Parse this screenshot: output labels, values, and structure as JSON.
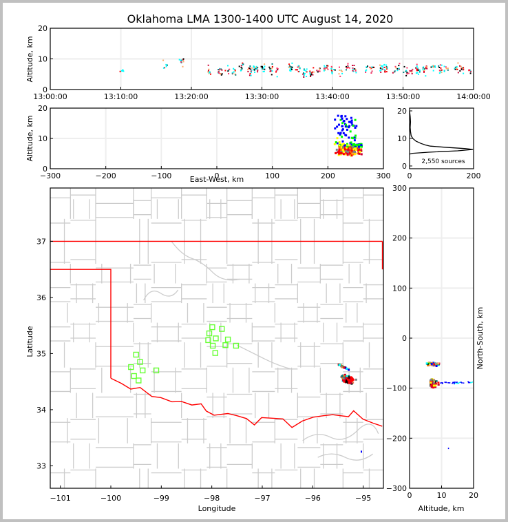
{
  "title": "Oklahoma LMA 1300-1400 UTC August 14, 2020",
  "colors": {
    "state_border": "#ff0000",
    "county_line": "#cccccc",
    "station": "#66ff33",
    "grid": "#eeeeee",
    "histogram": "#000000"
  },
  "chart_data": [
    {
      "id": "time-altitude",
      "type": "scatter",
      "ylabel": "Altitude, km",
      "xlabel": "",
      "xlim": [
        "13:00:00",
        "14:00:00"
      ],
      "ylim": [
        0,
        20
      ],
      "xticks": [
        "13:00:00",
        "13:10:00",
        "13:20:00",
        "13:30:00",
        "13:40:00",
        "13:50:00",
        "14:00:00"
      ],
      "yticks": [
        "0",
        "10",
        "20"
      ],
      "grid": true,
      "series_minutes": [
        10.0,
        16.2,
        18.5,
        22.5,
        24.0,
        25.0,
        26.0,
        27.0,
        28.2,
        29.0,
        30.0,
        31.2,
        32.0,
        34.0,
        35.0,
        36.0,
        37.0,
        38.0,
        39.0,
        40.0,
        41.0,
        42.0,
        43.0,
        44.8,
        45.5,
        46.8,
        47.5,
        48.6,
        49.2,
        50.2,
        51.0,
        52.0,
        53.0,
        54.2,
        55.2,
        56.0,
        57.5,
        58.2,
        59.5
      ],
      "series_alt_km": [
        6.5,
        8.0,
        9.5,
        6.3,
        6.0,
        6.5,
        6.2,
        7.5,
        6.5,
        6.8,
        7.5,
        6.7,
        6.4,
        7.5,
        7.5,
        5.8,
        6.2,
        6.7,
        7.5,
        6.6,
        5.8,
        7.5,
        7.0,
        6.8,
        7.0,
        6.8,
        6.9,
        6.5,
        7.0,
        6.5,
        6.5,
        6.8,
        6.5,
        7.5,
        7.0,
        7.0,
        7.0,
        6.5,
        6.5
      ]
    },
    {
      "id": "east-west-altitude",
      "type": "scatter",
      "xlabel": "East-West, km",
      "ylabel": "Altitude, km",
      "xlim": [
        -300,
        300
      ],
      "ylim": [
        0,
        20
      ],
      "xticks": [
        "−300",
        "−200",
        "−100",
        "0",
        "100",
        "200",
        "300"
      ],
      "yticks": [
        "0",
        "10",
        "20"
      ],
      "grid": true,
      "cluster": {
        "x_range_km": [
          210,
          260
        ],
        "alt_range_km": [
          4.5,
          18
        ],
        "peak_alt_km": 6.5
      }
    },
    {
      "id": "altitude-histogram",
      "type": "line",
      "xlim": [
        0,
        200
      ],
      "ylim": [
        0,
        20
      ],
      "xticks": [
        "0",
        "200"
      ],
      "yticks": [
        "0",
        "10",
        "20"
      ],
      "annotation": "2,550 sources",
      "profile_alt_km": [
        4.3,
        4.6,
        5.0,
        5.5,
        6.0,
        6.3,
        6.8,
        7.2,
        7.6,
        8.2,
        9.0,
        10.0,
        11.0,
        12.5,
        14.0,
        16.0,
        18.0,
        20.0
      ],
      "profile_counts": [
        0,
        10,
        60,
        150,
        198,
        175,
        110,
        65,
        50,
        35,
        20,
        10,
        5,
        3,
        2,
        3,
        2,
        0
      ]
    },
    {
      "id": "plan-view-map",
      "type": "scatter",
      "xlabel": "Longitude",
      "ylabel": "Latitude",
      "xlim": [
        -101.2,
        -94.6
      ],
      "ylim": [
        32.6,
        37.95
      ],
      "xticks": [
        "−101",
        "−100",
        "−99",
        "−98",
        "−97",
        "−96",
        "−95"
      ],
      "yticks": [
        "33",
        "34",
        "35",
        "36",
        "37"
      ],
      "stations": [
        {
          "lon": -99.5,
          "lat": 34.98
        },
        {
          "lon": -99.42,
          "lat": 34.85
        },
        {
          "lon": -99.6,
          "lat": 34.76
        },
        {
          "lon": -99.37,
          "lat": 34.7
        },
        {
          "lon": -99.1,
          "lat": 34.7
        },
        {
          "lon": -99.54,
          "lat": 34.6
        },
        {
          "lon": -99.45,
          "lat": 34.52
        },
        {
          "lon": -97.99,
          "lat": 35.47
        },
        {
          "lon": -97.8,
          "lat": 35.44
        },
        {
          "lon": -98.05,
          "lat": 35.36
        },
        {
          "lon": -97.92,
          "lat": 35.27
        },
        {
          "lon": -97.68,
          "lat": 35.25
        },
        {
          "lon": -98.07,
          "lat": 35.24
        },
        {
          "lon": -97.98,
          "lat": 35.14
        },
        {
          "lon": -97.73,
          "lat": 35.15
        },
        {
          "lon": -97.52,
          "lat": 35.14
        },
        {
          "lon": -97.93,
          "lat": 35.01
        }
      ],
      "lightning_cluster": {
        "lon_range": [
          -95.6,
          -95.05
        ],
        "lat_range": [
          34.4,
          34.87
        ],
        "core_lon": -95.3,
        "core_lat": 34.55
      }
    },
    {
      "id": "altitude-north-south",
      "type": "scatter",
      "xlabel": "Altitude, km",
      "ylabel": "North-South, km",
      "xlim": [
        0,
        20
      ],
      "ylim": [
        -300,
        300
      ],
      "xticks": [
        "0",
        "10",
        "20"
      ],
      "yticks": [
        "−300",
        "−200",
        "−100",
        "0",
        "100",
        "200",
        "300"
      ],
      "cluster": {
        "ns_range_km": [
          -105,
          -45
        ],
        "alt_range_km": [
          4.5,
          20
        ],
        "core_ns_km": -88
      }
    }
  ]
}
